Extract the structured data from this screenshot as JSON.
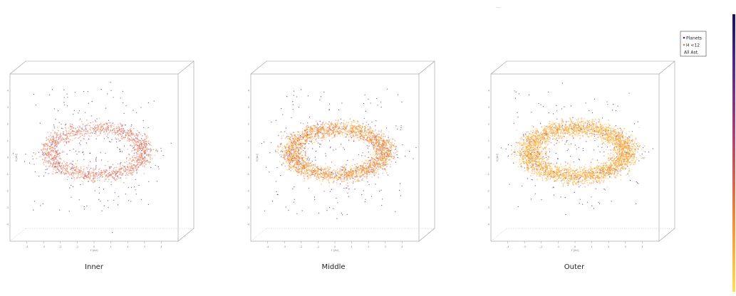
{
  "top_marker": "...",
  "legend": {
    "items": [
      {
        "label": "Planets",
        "color": "#3b1c8c",
        "symbol": "dot"
      },
      {
        "label": "H <12",
        "color": "#e8733f",
        "symbol": "dot"
      },
      {
        "label": "All Ast.",
        "color": "",
        "symbol": "none"
      }
    ]
  },
  "colorbar": {
    "stops": [
      "#1a1060",
      "#5a2a8a",
      "#a53a7a",
      "#e0604a",
      "#f6a03a",
      "#fde05a"
    ]
  },
  "chart_data": [
    {
      "type": "scatter",
      "title": "Inner",
      "note": "3D scatter of asteroid positions in a box; dense ring (torus) with sparse planet/outlier points",
      "ring": {
        "rx": 3.1,
        "ry": 1.0,
        "thickness": 0.9,
        "center": [
          0,
          0
        ]
      },
      "density": "low",
      "dominant_color": "#e87a5a",
      "xlim": [
        -5,
        5
      ],
      "ylim": [
        -5,
        5
      ],
      "xticks": [
        -4,
        -3,
        -2,
        -1,
        0,
        1,
        2,
        3,
        4
      ],
      "yticks": [
        -4,
        -3,
        -2,
        -1,
        0,
        1,
        2,
        3,
        4
      ],
      "xlabel": "Y [AU]",
      "ylabel": "X [AU]"
    },
    {
      "type": "scatter",
      "title": "Middle",
      "note": "3D scatter of asteroid positions; thicker orange ring",
      "ring": {
        "rx": 3.1,
        "ry": 1.0,
        "thickness": 0.95,
        "center": [
          0,
          0
        ]
      },
      "density": "medium",
      "dominant_color": "#f29a3a",
      "xlim": [
        -5,
        5
      ],
      "ylim": [
        -5,
        5
      ],
      "xticks": [
        -4,
        -3,
        -2,
        -1,
        0,
        1,
        2,
        3,
        4
      ],
      "yticks": [
        -4,
        -3,
        -2,
        -1,
        0,
        1,
        2,
        3,
        4
      ],
      "xlabel": "Y [AU]",
      "ylabel": "X [AU]"
    },
    {
      "type": "scatter",
      "title": "Outer",
      "note": "3D scatter of asteroid positions; wide yellow-orange ring",
      "ring": {
        "rx": 3.2,
        "ry": 1.05,
        "thickness": 1.1,
        "center": [
          0,
          0
        ]
      },
      "density": "high",
      "dominant_color": "#f7b23a",
      "xlim": [
        -5,
        5
      ],
      "ylim": [
        -5,
        5
      ],
      "xticks": [
        -4,
        -3,
        -2,
        -1,
        0,
        1,
        2,
        3,
        4
      ],
      "yticks": [
        -4,
        -3,
        -2,
        -1,
        0,
        1,
        2,
        3,
        4
      ],
      "xlabel": "Y [AU]",
      "ylabel": "X [AU]"
    }
  ]
}
